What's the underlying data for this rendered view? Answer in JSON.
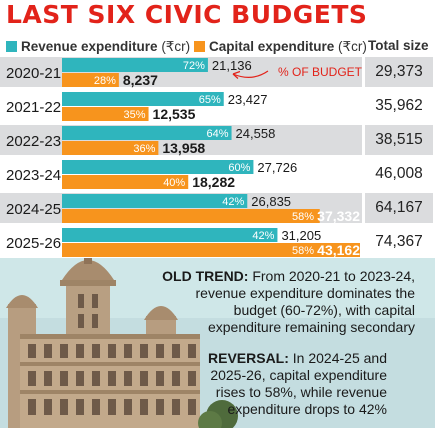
{
  "title": "LAST SIX CIVIC BUDGETS",
  "legend": {
    "revenue_label": "Revenue expenditure",
    "revenue_unit": "(₹cr)",
    "capital_label": "Capital expenditure",
    "capital_unit": "(₹cr)",
    "total_label": "Total size"
  },
  "annotation": "% OF BUDGET",
  "colors": {
    "revenue": "#2fb5bd",
    "capital": "#f7941d",
    "title": "#e2231a",
    "annotation": "#e2231a"
  },
  "chart_data": {
    "type": "bar",
    "orientation": "horizontal",
    "title": "LAST SIX CIVIC BUDGETS",
    "categories": [
      "2020-21",
      "2021-22",
      "2022-23",
      "2023-24",
      "2024-25",
      "2025-26"
    ],
    "series": [
      {
        "name": "Revenue expenditure (₹cr)",
        "values": [
          21136,
          23427,
          24558,
          27726,
          26835,
          31205
        ],
        "percent_labels": [
          "72%",
          "65%",
          "64%",
          "60%",
          "42%",
          "42%"
        ],
        "value_labels": [
          "21,136",
          "23,427",
          "24,558",
          "27,726",
          "26,835",
          "31,205"
        ]
      },
      {
        "name": "Capital expenditure (₹cr)",
        "values": [
          8237,
          12535,
          13958,
          18282,
          37332,
          43162
        ],
        "percent_labels": [
          "28%",
          "35%",
          "36%",
          "40%",
          "58%",
          "58%"
        ],
        "value_labels": [
          "8,237",
          "12,535",
          "13,958",
          "18,282",
          "37,332",
          "43,162"
        ]
      }
    ],
    "totals_header": "Total size",
    "totals": [
      "29,373",
      "35,962",
      "38,515",
      "46,008",
      "64,167",
      "74,367"
    ],
    "annotations": [
      "% OF BUDGET"
    ]
  },
  "notes": {
    "old_trend": {
      "heading": "OLD TREND:",
      "lines": [
        "From 2020-21 to 2023-24,",
        "revenue expenditure dominates the",
        "budget (60-72%), with capital",
        "expenditure remaining secondary"
      ]
    },
    "reversal": {
      "heading": "REVERSAL:",
      "lines": [
        "In 2024-25 and",
        "2025-26, capital expenditure",
        "rises to 58%, while revenue",
        "expenditure drops to 42%"
      ]
    }
  },
  "image": {
    "icon": "civic-building-illustration"
  }
}
